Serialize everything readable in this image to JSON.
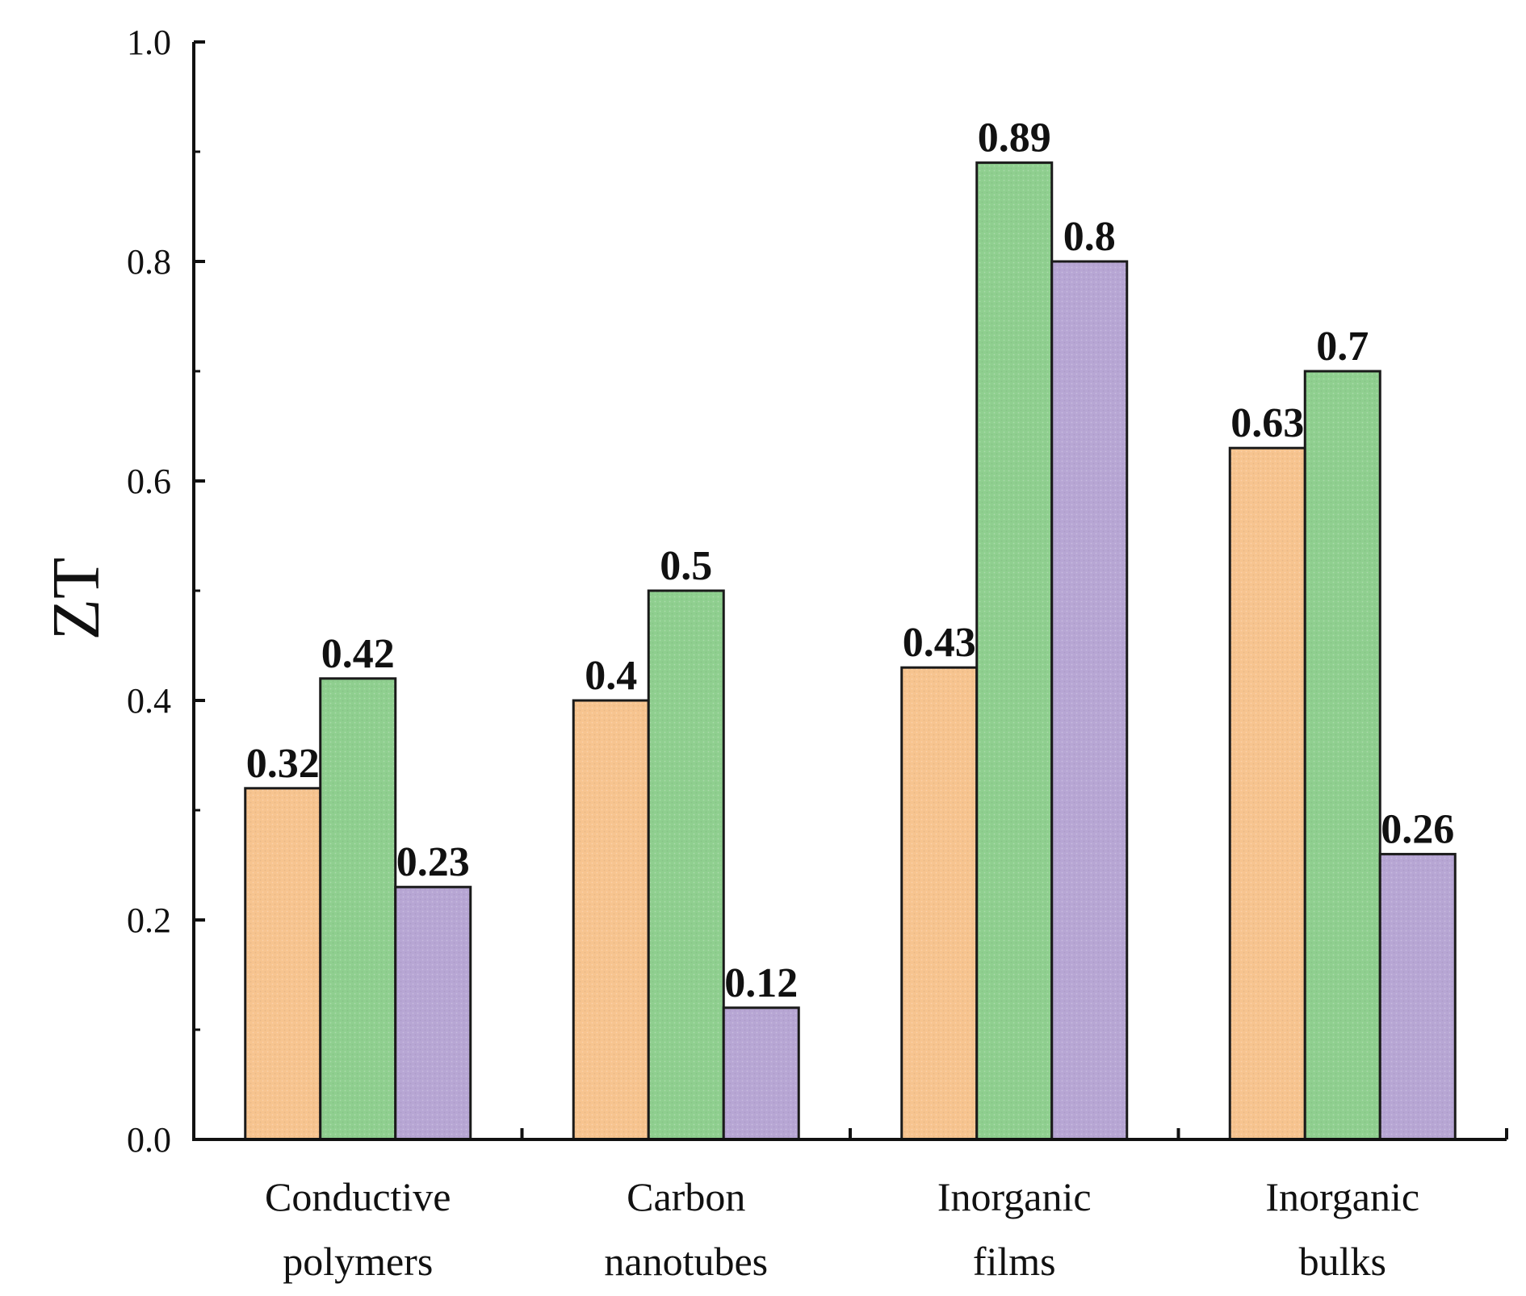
{
  "chart_data": {
    "type": "bar",
    "categories": [
      [
        "Conductive",
        "polymers"
      ],
      [
        "Carbon",
        "nanotubes"
      ],
      [
        "Inorganic",
        "films"
      ],
      [
        "Inorganic",
        "bulks"
      ]
    ],
    "series": [
      {
        "values": [
          0.32,
          0.4,
          0.43,
          0.63
        ],
        "color": "#f7c48f"
      },
      {
        "values": [
          0.42,
          0.5,
          0.89,
          0.7
        ],
        "color": "#8fcf8f"
      },
      {
        "values": [
          0.23,
          0.12,
          0.8,
          0.26
        ],
        "color": "#b7a6d4"
      }
    ],
    "value_labels": [
      [
        "0.32",
        "0.4",
        "0.43",
        "0.63"
      ],
      [
        "0.42",
        "0.5",
        "0.89",
        "0.7"
      ],
      [
        "0.23",
        "0.12",
        "0.8",
        "0.26"
      ]
    ],
    "xlabel": "",
    "ylabel": "ZT",
    "ylim": [
      0.0,
      1.0
    ],
    "yticks": [
      "0.0",
      "0.2",
      "0.4",
      "0.6",
      "0.8",
      "1.0"
    ],
    "grid": false,
    "legend": "none",
    "title": ""
  }
}
